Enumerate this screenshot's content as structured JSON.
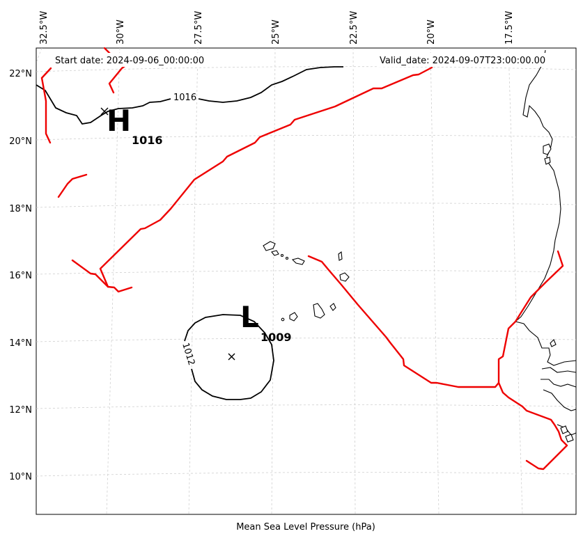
{
  "header": {
    "start_date": "Start date: 2024-09-06_00:00:00",
    "valid_date": "Valid_date: 2024-09-07T23:00:00.00"
  },
  "footer": {
    "label": "Mean Sea Level Pressure (hPa)"
  },
  "axes": {
    "lon_ticks": [
      "32.5°W",
      "30°W",
      "27.5°W",
      "25°W",
      "22.5°W",
      "20°W",
      "17.5°W"
    ],
    "lat_ticks": [
      "22°N",
      "20°N",
      "18°N",
      "16°N",
      "14°N",
      "12°N",
      "10°N"
    ]
  },
  "systems": [
    {
      "type": "high",
      "letter": "H",
      "value": "1016"
    },
    {
      "type": "low",
      "letter": "L",
      "value": "1009"
    }
  ],
  "isobar_labels": [
    "1016",
    "1012"
  ],
  "colors": {
    "isobar": "#000000",
    "front": "#ee0000",
    "grid": "#cfcfcf",
    "coast": "#000000"
  }
}
